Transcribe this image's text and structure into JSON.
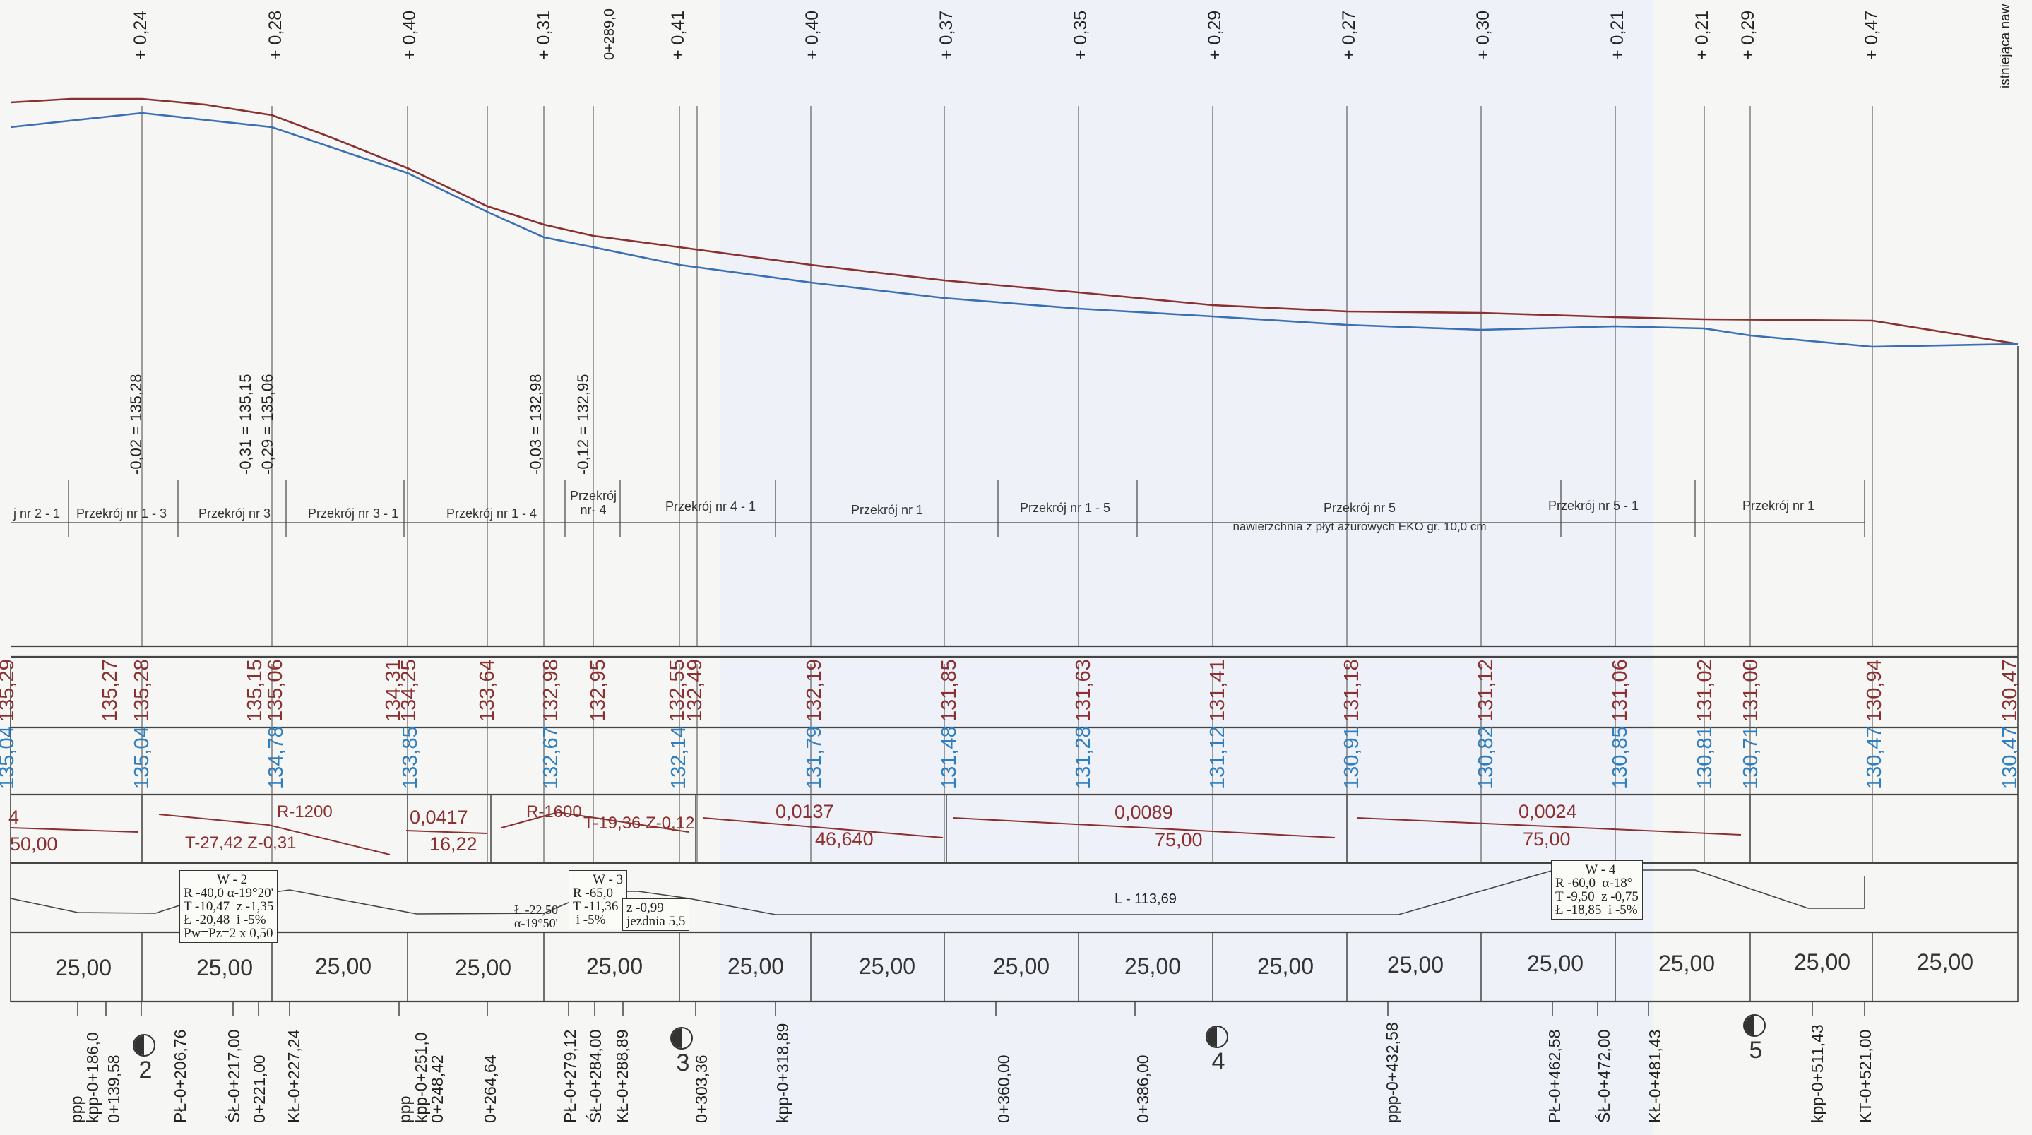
{
  "chart_data": {
    "type": "longitudinal-profile",
    "top_diffs": [
      "+ 0,24",
      "+ 0,28",
      "+ 0,40",
      "+ 0,31",
      "0+289,0",
      "+ 0,41",
      "+ 0,40",
      "+ 0,37",
      "+ 0,35",
      "+ 0,29",
      "+ 0,27",
      "+ 0,30",
      "+ 0,21",
      "+ 0,21",
      "+ 0,29",
      "+ 0,47"
    ],
    "right_note": "istniejąca naw",
    "elev_notes": [
      "-0,02 = 135,28",
      "-0,31 = 135,15",
      "-0,29 = 135,06",
      "-0,03 = 132,98",
      "-0,12 = 132,95"
    ],
    "sections": [
      {
        "label": "j nr 2 - 1"
      },
      {
        "label": "Przekrój nr 1 - 3"
      },
      {
        "label": "Przekrój nr 3"
      },
      {
        "label": "Przekrój nr 3 - 1"
      },
      {
        "label": "Przekrój nr 1 - 4"
      },
      {
        "label": "Przekrój\nnr- 4"
      },
      {
        "label": "Przekrój nr 4 - 1"
      },
      {
        "label": "Przekrój nr 1"
      },
      {
        "label": "Przekrój nr 1 - 5"
      },
      {
        "label": "Przekrój nr 5"
      },
      {
        "label": "Przekrój nr 5 - 1"
      },
      {
        "label": "Przekrój nr 1"
      }
    ],
    "section_note": "nawierzchnia z płyt ażurowych EKO gr. 10,0 cm",
    "red_values": [
      "135,29",
      "135,27",
      "135,28",
      "135,15",
      "135,06",
      "134,31",
      "134,25",
      "133,64",
      "132,98",
      "132,95",
      "132,55",
      "132,49",
      "132,19",
      "131,85",
      "131,63",
      "131,41",
      "131,18",
      "131,12",
      "131,06",
      "131,02",
      "131,00",
      "130,94",
      "130,47"
    ],
    "blue_values": [
      "135,04",
      "135,04",
      "134,78",
      "133,85",
      "132,67",
      "132,14",
      "131,79",
      "131,48",
      "131,28",
      "131,12",
      "130,91",
      "130,82",
      "130,85",
      "130,81",
      "130,71",
      "130,47",
      "130,47"
    ],
    "grades": [
      {
        "top": "4",
        "bottom": "50,00"
      },
      {
        "top": "R-1200",
        "bottom": "T-27,42  Z-0,31"
      },
      {
        "top": "0,0417",
        "bottom": "16,22"
      },
      {
        "top": "R-1600",
        "bottom": "T-19,36  Z-0,12"
      },
      {
        "top": "0,0137",
        "bottom": "46,640"
      },
      {
        "top": "0,0089",
        "bottom": "75,00"
      },
      {
        "top": "0,0024",
        "bottom": "75,00"
      }
    ],
    "curves": [
      {
        "text": "          W - 2\nR -40,0 α-19°20'\nT -10,47  z -1,35\nŁ -20,48  i -5%\nPw=Pz=2 x 0,50"
      },
      {
        "text": "Ł -22,50\nα-19°50'"
      },
      {
        "text": "      W - 3\nR -65,0\nT -11,36\n i -5%"
      },
      {
        "text": "z -0,99\njezdnia 5,5"
      },
      {
        "text": "         W - 4\nR -60,0  α-18°\nT -9,50  z -0,75\nŁ -18,85  i -5%"
      }
    ],
    "straight_label": "L - 113,69",
    "distances": [
      "25,00",
      "25,00",
      "25,00",
      "25,00",
      "25,00",
      "25,00",
      "25,00",
      "25,00",
      "25,00",
      "25,00",
      "25,00",
      "25,00",
      "25,00",
      "25,00",
      "25,00"
    ],
    "stations": [
      "ppp\nkpp-0+186,0",
      "0+139,58",
      "PŁ-0+206,76",
      "ŚŁ-0+217,00",
      "0+221,00",
      "KŁ-0+227,24",
      "ppp\nkpp-0+251,0\n0+248,42",
      "0+264,64",
      "PŁ-0+279,12",
      "ŚŁ-0+284,00",
      "KŁ-0+288,89",
      "0+303,36",
      "kpp-0+318,89",
      "0+360,00",
      "0+386,00",
      "ppp-0+432,58",
      "PŁ-0+462,58",
      "ŚŁ-0+472,00",
      "KŁ-0+481,43",
      "kpp-0+511,43",
      "KT-0+521,00"
    ],
    "cross_sections": [
      "2",
      "3",
      "4",
      "5"
    ],
    "colors": {
      "design": "#8b3030",
      "terrain": "#3b6fb5",
      "grid": "#444444"
    }
  }
}
